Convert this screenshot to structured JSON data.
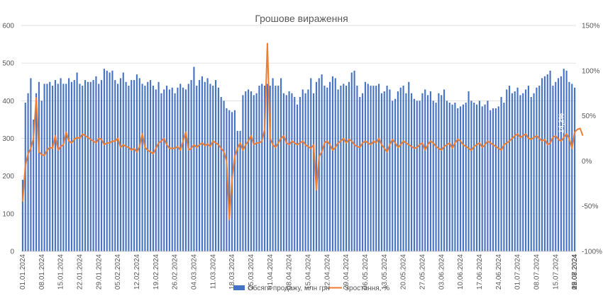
{
  "chart_data": {
    "type": "bar+line",
    "title": "Грошове вираження",
    "y_left": {
      "min": 0,
      "max": 600,
      "ticks": [
        "0",
        "100",
        "200",
        "300",
        "400",
        "500",
        "600"
      ]
    },
    "y_right": {
      "min": -100,
      "max": 150,
      "ticks": [
        "-100%",
        "-50%",
        "0%",
        "50%",
        "100%",
        "150%"
      ]
    },
    "x_tick_labels": [
      "01.01.2024",
      "08.01.2024",
      "15.01.2024",
      "22.01.2024",
      "29.01.2024",
      "05.02.2024",
      "12.02.2024",
      "19.02.2024",
      "26.02.2024",
      "04.03.2024",
      "11.03.2024",
      "18.03.2024",
      "25.03.2024",
      "01.04.2024",
      "08.04.2024",
      "15.04.2024",
      "22.04.2024",
      "29.04.2024",
      "06.05.2024",
      "13.05.2024",
      "20.05.2024",
      "27.05.2024",
      "03.06.2024",
      "10.06.2024",
      "17.06.2024",
      "24.06.2024",
      "01.07.2024",
      "08.07.2024",
      "15.07.2024",
      "22.07.2024",
      "29.07.2024",
      "05.08.2024",
      "12.08.2024",
      "19.08.2024"
    ],
    "series": [
      {
        "name": "Обсяги продажу, млн грн",
        "type": "bar",
        "color": "#4472c4",
        "values": [
          190,
          395,
          420,
          460,
          350,
          420,
          450,
          400,
          445,
          445,
          450,
          440,
          455,
          445,
          460,
          445,
          445,
          460,
          450,
          455,
          475,
          445,
          440,
          455,
          450,
          450,
          455,
          465,
          445,
          455,
          485,
          480,
          475,
          480,
          455,
          445,
          460,
          475,
          450,
          440,
          455,
          455,
          470,
          460,
          445,
          440,
          450,
          455,
          440,
          430,
          450,
          420,
          430,
          440,
          430,
          435,
          420,
          435,
          445,
          435,
          430,
          445,
          455,
          490,
          440,
          455,
          465,
          450,
          460,
          445,
          440,
          455,
          435,
          410,
          400,
          380,
          375,
          370,
          375,
          320,
          320,
          415,
          425,
          430,
          425,
          415,
          420,
          440,
          445,
          440,
          445,
          440,
          460,
          440,
          440,
          460,
          420,
          415,
          425,
          420,
          410,
          390,
          410,
          430,
          420,
          430,
          460,
          420,
          450,
          460,
          470,
          440,
          435,
          450,
          465,
          460,
          430,
          440,
          445,
          440,
          450,
          475,
          480,
          440,
          410,
          420,
          450,
          445,
          440,
          440,
          440,
          445,
          420,
          425,
          440,
          430,
          400,
          405,
          425,
          435,
          440,
          420,
          450,
          420,
          405,
          400,
          400,
          420,
          430,
          415,
          425,
          400,
          395,
          420,
          415,
          430,
          400,
          395,
          390,
          395,
          380,
          385,
          390,
          395,
          425,
          400,
          395,
          390,
          400,
          385,
          390,
          400,
          375,
          380,
          380,
          385,
          410,
          395,
          430,
          440,
          420,
          425,
          435,
          415,
          420,
          430,
          440,
          410,
          420,
          435,
          440,
          460,
          465,
          470,
          480,
          440,
          450,
          460,
          465,
          485,
          480,
          450,
          445,
          435
        ]
      },
      {
        "name": "Зростання, %",
        "type": "line",
        "color": "#ed7d31",
        "values": [
          -45,
          -5,
          8,
          14,
          25,
          70,
          10,
          7,
          6,
          12,
          15,
          14,
          28,
          12,
          16,
          18,
          32,
          22,
          20,
          24,
          26,
          25,
          30,
          28,
          26,
          24,
          22,
          20,
          25,
          24,
          18,
          20,
          20,
          22,
          22,
          25,
          15,
          18,
          16,
          15,
          12,
          14,
          10,
          16,
          30,
          15,
          12,
          10,
          8,
          14,
          20,
          22,
          25,
          18,
          14,
          14,
          14,
          16,
          12,
          22,
          32,
          12,
          14,
          18,
          15,
          18,
          20,
          17,
          19,
          16,
          22,
          20,
          18,
          14,
          10,
          0,
          -65,
          -20,
          5,
          14,
          20,
          12,
          18,
          22,
          28,
          18,
          20,
          20,
          22,
          35,
          130,
          25,
          18,
          15,
          20,
          25,
          28,
          20,
          18,
          22,
          20,
          18,
          20,
          22,
          18,
          16,
          14,
          18,
          -32,
          5,
          10,
          20,
          22,
          18,
          12,
          15,
          20,
          22,
          25,
          20,
          24,
          22,
          18,
          16,
          15,
          20,
          22,
          20,
          18,
          22,
          20,
          25,
          18,
          14,
          10,
          18,
          24,
          20,
          15,
          18,
          22,
          20,
          18,
          16,
          14,
          15,
          18,
          20,
          12,
          18,
          22,
          20,
          16,
          14,
          12,
          16,
          18,
          20,
          14,
          20,
          24,
          22,
          18,
          16,
          14,
          12,
          16,
          18,
          20,
          15,
          18,
          22,
          20,
          18,
          16,
          14,
          12,
          18,
          20,
          22,
          25,
          28,
          30,
          26,
          28,
          30,
          25,
          24,
          26,
          28,
          25,
          22,
          24,
          18,
          20,
          26,
          28,
          24,
          22,
          26,
          30,
          25,
          14,
          32,
          35,
          36,
          28
        ]
      }
    ],
    "annotation": "14,2%",
    "legend_position": "bottom"
  }
}
